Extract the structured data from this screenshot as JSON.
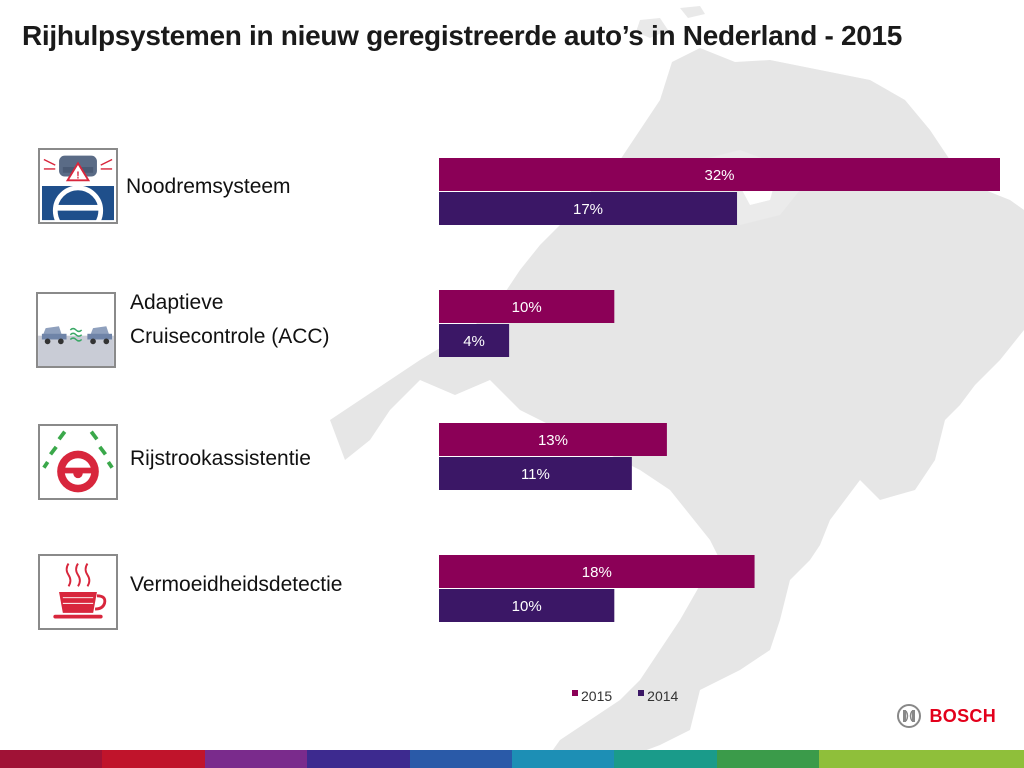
{
  "title": "Rijhulpsystemen in nieuw geregistreerde auto’s in Nederland - 2015",
  "chart_data": {
    "type": "bar",
    "orientation": "horizontal",
    "categories": [
      "Noodremsysteem",
      "Adaptieve Cruisecontrole (ACC)",
      "Rijstrookassistentie",
      "Vermoeidheidsdetectie"
    ],
    "series": [
      {
        "name": "2015",
        "values": [
          32,
          10,
          13,
          18
        ],
        "labels": [
          "32%",
          "10%",
          "13%",
          "18%"
        ],
        "color": "#8b0057"
      },
      {
        "name": "2014",
        "values": [
          17,
          4,
          11,
          10
        ],
        "labels": [
          "17%",
          "4%",
          "11%",
          "10%"
        ],
        "color": "#3b1766"
      }
    ],
    "value_unit": "%",
    "legend_position": "bottom"
  },
  "rows": [
    {
      "label_lines": [
        "Noodremsysteem"
      ],
      "icon": "emergency-brake-icon"
    },
    {
      "label_lines": [
        "Adaptieve",
        "Cruisecontrole (ACC)"
      ],
      "icon": "adaptive-cruise-icon"
    },
    {
      "label_lines": [
        "Rijstrookassistentie"
      ],
      "icon": "lane-assist-icon"
    },
    {
      "label_lines": [
        "Vermoeidheidsdetectie"
      ],
      "icon": "fatigue-coffee-icon"
    }
  ],
  "legend": {
    "item_2015": "2015",
    "item_2014": "2014"
  },
  "brand": {
    "name": "BOSCH",
    "color": "#e3001b"
  },
  "stripe_colors": [
    "#a01236",
    "#c0142b",
    "#7a2b8c",
    "#3d2a8f",
    "#2a5aa8",
    "#1d8fb5",
    "#1a9b8a",
    "#3b9b4a",
    "#8fbf3a",
    "#8fbf3a"
  ]
}
